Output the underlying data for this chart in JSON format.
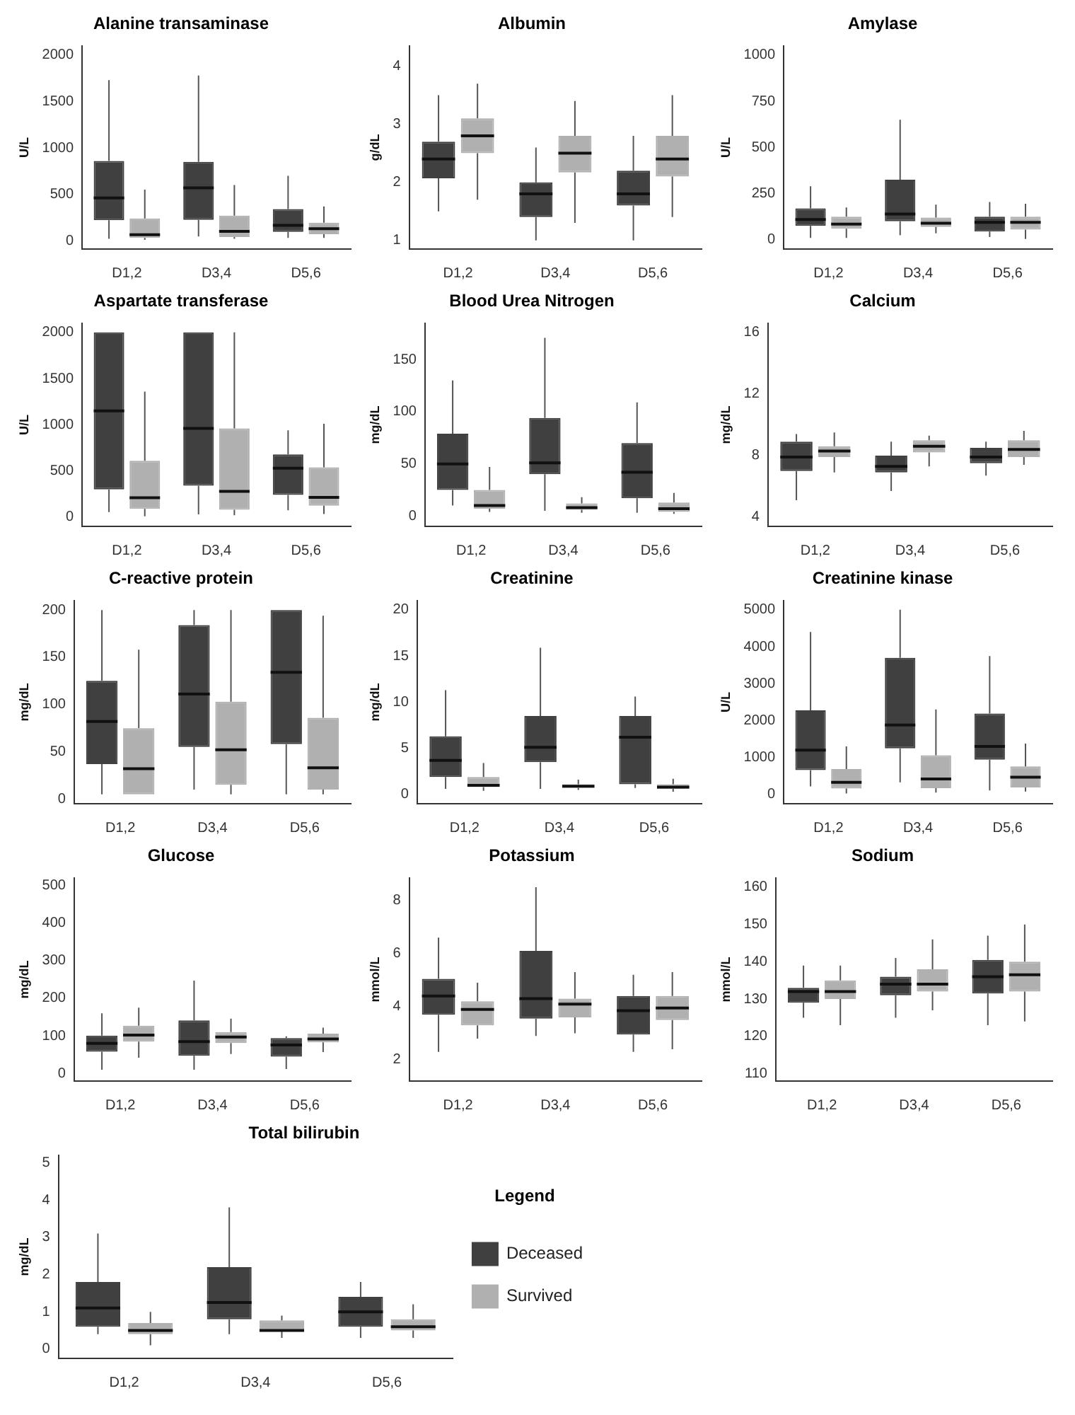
{
  "chart_data": [
    {
      "type": "box",
      "title": "Alanine transaminase",
      "ylabel": "U/L",
      "categories": [
        "D1,2",
        "D3,4",
        "D5,6"
      ],
      "ylim": [
        -90,
        2100
      ],
      "yticks": [
        0,
        500,
        1000,
        1500,
        2000
      ],
      "series": [
        {
          "color": "#404040",
          "boxes": [
            {
              "low": 20,
              "q1": 220,
              "median": 460,
              "q3": 860,
              "high": 1730
            },
            {
              "low": 45,
              "q1": 225,
              "median": 570,
              "q3": 850,
              "high": 1780
            },
            {
              "low": 30,
              "q1": 95,
              "median": 165,
              "q3": 340,
              "high": 700
            }
          ]
        },
        {
          "color": "#b0b0b0",
          "boxes": [
            {
              "low": 10,
              "q1": 30,
              "median": 65,
              "q3": 240,
              "high": 550
            },
            {
              "low": 20,
              "q1": 40,
              "median": 100,
              "q3": 270,
              "high": 600
            },
            {
              "low": 30,
              "q1": 70,
              "median": 130,
              "q3": 195,
              "high": 370
            }
          ]
        }
      ]
    },
    {
      "type": "box",
      "title": "Albumin",
      "ylabel": "g/dL",
      "categories": [
        "D1,2",
        "D3,4",
        "D5,6"
      ],
      "ylim": [
        0.85,
        4.35
      ],
      "yticks": [
        1,
        2,
        3,
        4
      ],
      "series": [
        {
          "color": "#404040",
          "boxes": [
            {
              "low": 1.5,
              "q1": 2.07,
              "median": 2.4,
              "q3": 2.7,
              "high": 3.5
            },
            {
              "low": 1.0,
              "q1": 1.4,
              "median": 1.8,
              "q3": 2.0,
              "high": 2.6
            },
            {
              "low": 1.0,
              "q1": 1.6,
              "median": 1.8,
              "q3": 2.2,
              "high": 2.8
            }
          ]
        },
        {
          "color": "#b0b0b0",
          "boxes": [
            {
              "low": 1.7,
              "q1": 2.5,
              "median": 2.8,
              "q3": 3.1,
              "high": 3.7
            },
            {
              "low": 1.3,
              "q1": 2.17,
              "median": 2.5,
              "q3": 2.8,
              "high": 3.4
            },
            {
              "low": 1.4,
              "q1": 2.1,
              "median": 2.4,
              "q3": 2.8,
              "high": 3.5
            }
          ]
        }
      ]
    },
    {
      "type": "box",
      "title": "Amylase",
      "ylabel": "U/L",
      "categories": [
        "D1,2",
        "D3,4",
        "D5,6"
      ],
      "ylim": [
        -50,
        1050
      ],
      "yticks": [
        0,
        250,
        500,
        750,
        1000
      ],
      "series": [
        {
          "color": "#404040",
          "boxes": [
            {
              "low": 10,
              "q1": 75,
              "median": 110,
              "q3": 170,
              "high": 290
            },
            {
              "low": 25,
              "q1": 100,
              "median": 140,
              "q3": 325,
              "high": 650
            },
            {
              "low": 15,
              "q1": 45,
              "median": 95,
              "q3": 125,
              "high": 205
            }
          ]
        },
        {
          "color": "#b0b0b0",
          "boxes": [
            {
              "low": 10,
              "q1": 60,
              "median": 85,
              "q3": 125,
              "high": 175
            },
            {
              "low": 35,
              "q1": 70,
              "median": 90,
              "q3": 120,
              "high": 190
            },
            {
              "low": 5,
              "q1": 55,
              "median": 95,
              "q3": 125,
              "high": 195
            }
          ]
        }
      ]
    },
    {
      "type": "box",
      "title": "Aspartate transferase",
      "ylabel": "U/L",
      "categories": [
        "D1,2",
        "D3,4",
        "D5,6"
      ],
      "ylim": [
        -100,
        2100
      ],
      "yticks": [
        0,
        500,
        1000,
        1500,
        2000
      ],
      "series": [
        {
          "color": "#404040",
          "boxes": [
            {
              "low": 55,
              "q1": 300,
              "median": 1150,
              "q3": 2000,
              "high": 2000
            },
            {
              "low": 30,
              "q1": 340,
              "median": 960,
              "q3": 2000,
              "high": 2000
            },
            {
              "low": 75,
              "q1": 240,
              "median": 530,
              "q3": 680,
              "high": 940
            }
          ]
        },
        {
          "color": "#b0b0b0",
          "boxes": [
            {
              "low": 10,
              "q1": 90,
              "median": 210,
              "q3": 610,
              "high": 1360
            },
            {
              "low": 20,
              "q1": 80,
              "median": 280,
              "q3": 960,
              "high": 2000
            },
            {
              "low": 35,
              "q1": 125,
              "median": 215,
              "q3": 540,
              "high": 1010
            }
          ]
        }
      ]
    },
    {
      "type": "box",
      "title": "Blood Urea Nitrogen",
      "ylabel": "mg/dL",
      "categories": [
        "D1,2",
        "D3,4",
        "D5,6"
      ],
      "ylim": [
        -10,
        185
      ],
      "yticks": [
        0,
        50,
        100,
        150
      ],
      "series": [
        {
          "color": "#404040",
          "boxes": [
            {
              "low": 10,
              "q1": 25,
              "median": 50,
              "q3": 79,
              "high": 130
            },
            {
              "low": 5,
              "q1": 40,
              "median": 51,
              "q3": 94,
              "high": 171
            },
            {
              "low": 3,
              "q1": 17,
              "median": 42,
              "q3": 70,
              "high": 109
            }
          ]
        },
        {
          "color": "#b0b0b0",
          "boxes": [
            {
              "low": 4,
              "q1": 7,
              "median": 10,
              "q3": 25,
              "high": 47
            },
            {
              "low": 3,
              "q1": 6,
              "median": 8,
              "q3": 12,
              "high": 18
            },
            {
              "low": 2,
              "q1": 4,
              "median": 7,
              "q3": 13,
              "high": 22
            }
          ]
        }
      ]
    },
    {
      "type": "box",
      "title": "Calcium",
      "ylabel": "mg/dL",
      "categories": [
        "D1,2",
        "D3,4",
        "D5,6"
      ],
      "ylim": [
        3.4,
        16.6
      ],
      "yticks": [
        4,
        8,
        12,
        16
      ],
      "series": [
        {
          "color": "#404040",
          "boxes": [
            {
              "low": 5.1,
              "q1": 7.0,
              "median": 7.9,
              "q3": 8.9,
              "high": 9.4
            },
            {
              "low": 5.7,
              "q1": 6.9,
              "median": 7.3,
              "q3": 8.0,
              "high": 8.9
            },
            {
              "low": 6.7,
              "q1": 7.5,
              "median": 7.9,
              "q3": 8.5,
              "high": 8.9
            }
          ]
        },
        {
          "color": "#b0b0b0",
          "boxes": [
            {
              "low": 6.9,
              "q1": 7.9,
              "median": 8.3,
              "q3": 8.6,
              "high": 9.5
            },
            {
              "low": 7.3,
              "q1": 8.2,
              "median": 8.6,
              "q3": 9.0,
              "high": 9.3
            },
            {
              "low": 7.4,
              "q1": 7.9,
              "median": 8.4,
              "q3": 9.0,
              "high": 9.6
            }
          ]
        }
      ]
    },
    {
      "type": "box",
      "title": "C-reactive protein",
      "ylabel": "mg/dL",
      "categories": [
        "D1,2",
        "D3,4",
        "D5,6"
      ],
      "ylim": [
        -5,
        210
      ],
      "yticks": [
        0,
        50,
        100,
        150,
        200
      ],
      "series": [
        {
          "color": "#404040",
          "boxes": [
            {
              "low": 5,
              "q1": 37,
              "median": 82,
              "q3": 125,
              "high": 200
            },
            {
              "low": 10,
              "q1": 55,
              "median": 111,
              "q3": 184,
              "high": 200
            },
            {
              "low": 5,
              "q1": 58,
              "median": 134,
              "q3": 200,
              "high": 200
            }
          ]
        },
        {
          "color": "#b0b0b0",
          "boxes": [
            {
              "low": 5,
              "q1": 5,
              "median": 32,
              "q3": 75,
              "high": 158
            },
            {
              "low": 5,
              "q1": 15,
              "median": 52,
              "q3": 103,
              "high": 200
            },
            {
              "low": 5,
              "q1": 10,
              "median": 33,
              "q3": 86,
              "high": 194
            }
          ]
        }
      ]
    },
    {
      "type": "box",
      "title": "Creatinine",
      "ylabel": "mg/dL",
      "categories": [
        "D1,2",
        "D3,4",
        "D5,6"
      ],
      "ylim": [
        -1,
        21
      ],
      "yticks": [
        0,
        5,
        10,
        15,
        20
      ],
      "series": [
        {
          "color": "#404040",
          "boxes": [
            {
              "low": 0.6,
              "q1": 1.9,
              "median": 3.7,
              "q3": 6.3,
              "high": 11.3
            },
            {
              "low": 0.6,
              "q1": 3.5,
              "median": 5.1,
              "q3": 8.5,
              "high": 15.9
            },
            {
              "low": 0.7,
              "q1": 1.1,
              "median": 6.2,
              "q3": 8.5,
              "high": 10.6
            }
          ]
        },
        {
          "color": "#b0b0b0",
          "boxes": [
            {
              "low": 0.4,
              "q1": 0.8,
              "median": 1.0,
              "q3": 1.9,
              "high": 3.4
            },
            {
              "low": 0.5,
              "q1": 0.7,
              "median": 0.9,
              "q3": 1.1,
              "high": 1.6
            },
            {
              "low": 0.3,
              "q1": 0.6,
              "median": 0.8,
              "q3": 1.1,
              "high": 1.7
            }
          ]
        }
      ]
    },
    {
      "type": "box",
      "title": "Creatinine kinase",
      "ylabel": "U/L",
      "categories": [
        "D1,2",
        "D3,4",
        "D5,6"
      ],
      "ylim": [
        -250,
        5250
      ],
      "yticks": [
        0,
        1000,
        2000,
        3000,
        4000,
        5000
      ],
      "series": [
        {
          "color": "#404040",
          "boxes": [
            {
              "low": 220,
              "q1": 660,
              "median": 1200,
              "q3": 2280,
              "high": 4400
            },
            {
              "low": 330,
              "q1": 1250,
              "median": 1880,
              "q3": 3700,
              "high": 5000
            },
            {
              "low": 110,
              "q1": 940,
              "median": 1300,
              "q3": 2190,
              "high": 3750
            }
          ]
        },
        {
          "color": "#b0b0b0",
          "boxes": [
            {
              "low": 30,
              "q1": 160,
              "median": 330,
              "q3": 690,
              "high": 1300
            },
            {
              "low": 50,
              "q1": 170,
              "median": 420,
              "q3": 1060,
              "high": 2300
            },
            {
              "low": 80,
              "q1": 190,
              "median": 470,
              "q3": 760,
              "high": 1380
            }
          ]
        }
      ]
    },
    {
      "type": "box",
      "title": "Glucose",
      "ylabel": "mg/dL",
      "categories": [
        "D1,2",
        "D3,4",
        "D5,6"
      ],
      "ylim": [
        -20,
        520
      ],
      "yticks": [
        0,
        100,
        200,
        300,
        400,
        500
      ],
      "series": [
        {
          "color": "#404040",
          "boxes": [
            {
              "low": 10,
              "q1": 58,
              "median": 80,
              "q3": 101,
              "high": 160
            },
            {
              "low": 10,
              "q1": 47,
              "median": 85,
              "q3": 141,
              "high": 247
            },
            {
              "low": 12,
              "q1": 45,
              "median": 76,
              "q3": 94,
              "high": 99
            }
          ]
        },
        {
          "color": "#b0b0b0",
          "boxes": [
            {
              "low": 42,
              "q1": 85,
              "median": 102,
              "q3": 127,
              "high": 175
            },
            {
              "low": 52,
              "q1": 81,
              "median": 97,
              "q3": 110,
              "high": 146
            },
            {
              "low": 57,
              "q1": 83,
              "median": 92,
              "q3": 106,
              "high": 122
            }
          ]
        }
      ]
    },
    {
      "type": "box",
      "title": "Potassium",
      "ylabel": "mmol/L",
      "categories": [
        "D1,2",
        "D3,4",
        "D5,6"
      ],
      "ylim": [
        1.2,
        8.85
      ],
      "yticks": [
        2,
        4,
        6,
        8
      ],
      "series": [
        {
          "color": "#404040",
          "boxes": [
            {
              "low": 2.3,
              "q1": 3.7,
              "median": 4.4,
              "q3": 5.05,
              "high": 6.6
            },
            {
              "low": 2.9,
              "q1": 3.55,
              "median": 4.3,
              "q3": 6.1,
              "high": 8.5
            },
            {
              "low": 2.3,
              "q1": 2.95,
              "median": 3.85,
              "q3": 4.4,
              "high": 5.2
            }
          ]
        },
        {
          "color": "#b0b0b0",
          "boxes": [
            {
              "low": 2.8,
              "q1": 3.3,
              "median": 3.9,
              "q3": 4.2,
              "high": 4.9
            },
            {
              "low": 3.0,
              "q1": 3.6,
              "median": 4.1,
              "q3": 4.3,
              "high": 5.3
            },
            {
              "low": 2.4,
              "q1": 3.5,
              "median": 3.95,
              "q3": 4.4,
              "high": 5.3
            }
          ]
        }
      ]
    },
    {
      "type": "box",
      "title": "Sodium",
      "ylabel": "mmol/L",
      "categories": [
        "D1,2",
        "D3,4",
        "D5,6"
      ],
      "ylim": [
        108,
        162.5
      ],
      "yticks": [
        110,
        120,
        130,
        140,
        150,
        160
      ],
      "series": [
        {
          "color": "#404040",
          "boxes": [
            {
              "low": 125,
              "q1": 129,
              "median": 132,
              "q3": 133,
              "high": 139
            },
            {
              "low": 125,
              "q1": 131,
              "median": 134,
              "q3": 136,
              "high": 141
            },
            {
              "low": 123,
              "q1": 131.5,
              "median": 136,
              "q3": 140.5,
              "high": 147
            }
          ]
        },
        {
          "color": "#b0b0b0",
          "boxes": [
            {
              "low": 123,
              "q1": 130,
              "median": 132,
              "q3": 135,
              "high": 139
            },
            {
              "low": 127,
              "q1": 132,
              "median": 134,
              "q3": 138,
              "high": 146
            },
            {
              "low": 124,
              "q1": 132,
              "median": 136.5,
              "q3": 140,
              "high": 150
            }
          ]
        }
      ]
    },
    {
      "type": "box",
      "title": "Total bilirubin",
      "ylabel": "mg/dL",
      "categories": [
        "D1,2",
        "D3,4",
        "D5,6"
      ],
      "ylim": [
        -0.25,
        5.2
      ],
      "yticks": [
        0,
        1,
        2,
        3,
        4,
        5
      ],
      "legend": "right",
      "legend_title": "Legend",
      "series": [
        {
          "name": "Deceased",
          "color": "#404040",
          "boxes": [
            {
              "low": 0.4,
              "q1": 0.6,
              "median": 1.1,
              "q3": 1.8,
              "high": 3.1
            },
            {
              "low": 0.4,
              "q1": 0.8,
              "median": 1.25,
              "q3": 2.2,
              "high": 3.8
            },
            {
              "low": 0.3,
              "q1": 0.6,
              "median": 1.0,
              "q3": 1.4,
              "high": 1.8
            }
          ]
        },
        {
          "name": "Survived",
          "color": "#b0b0b0",
          "boxes": [
            {
              "low": 0.1,
              "q1": 0.4,
              "median": 0.5,
              "q3": 0.7,
              "high": 1.0
            },
            {
              "low": 0.3,
              "q1": 0.5,
              "median": 0.5,
              "q3": 0.77,
              "high": 0.9
            },
            {
              "low": 0.3,
              "q1": 0.5,
              "median": 0.6,
              "q3": 0.8,
              "high": 1.2
            }
          ]
        }
      ]
    }
  ]
}
